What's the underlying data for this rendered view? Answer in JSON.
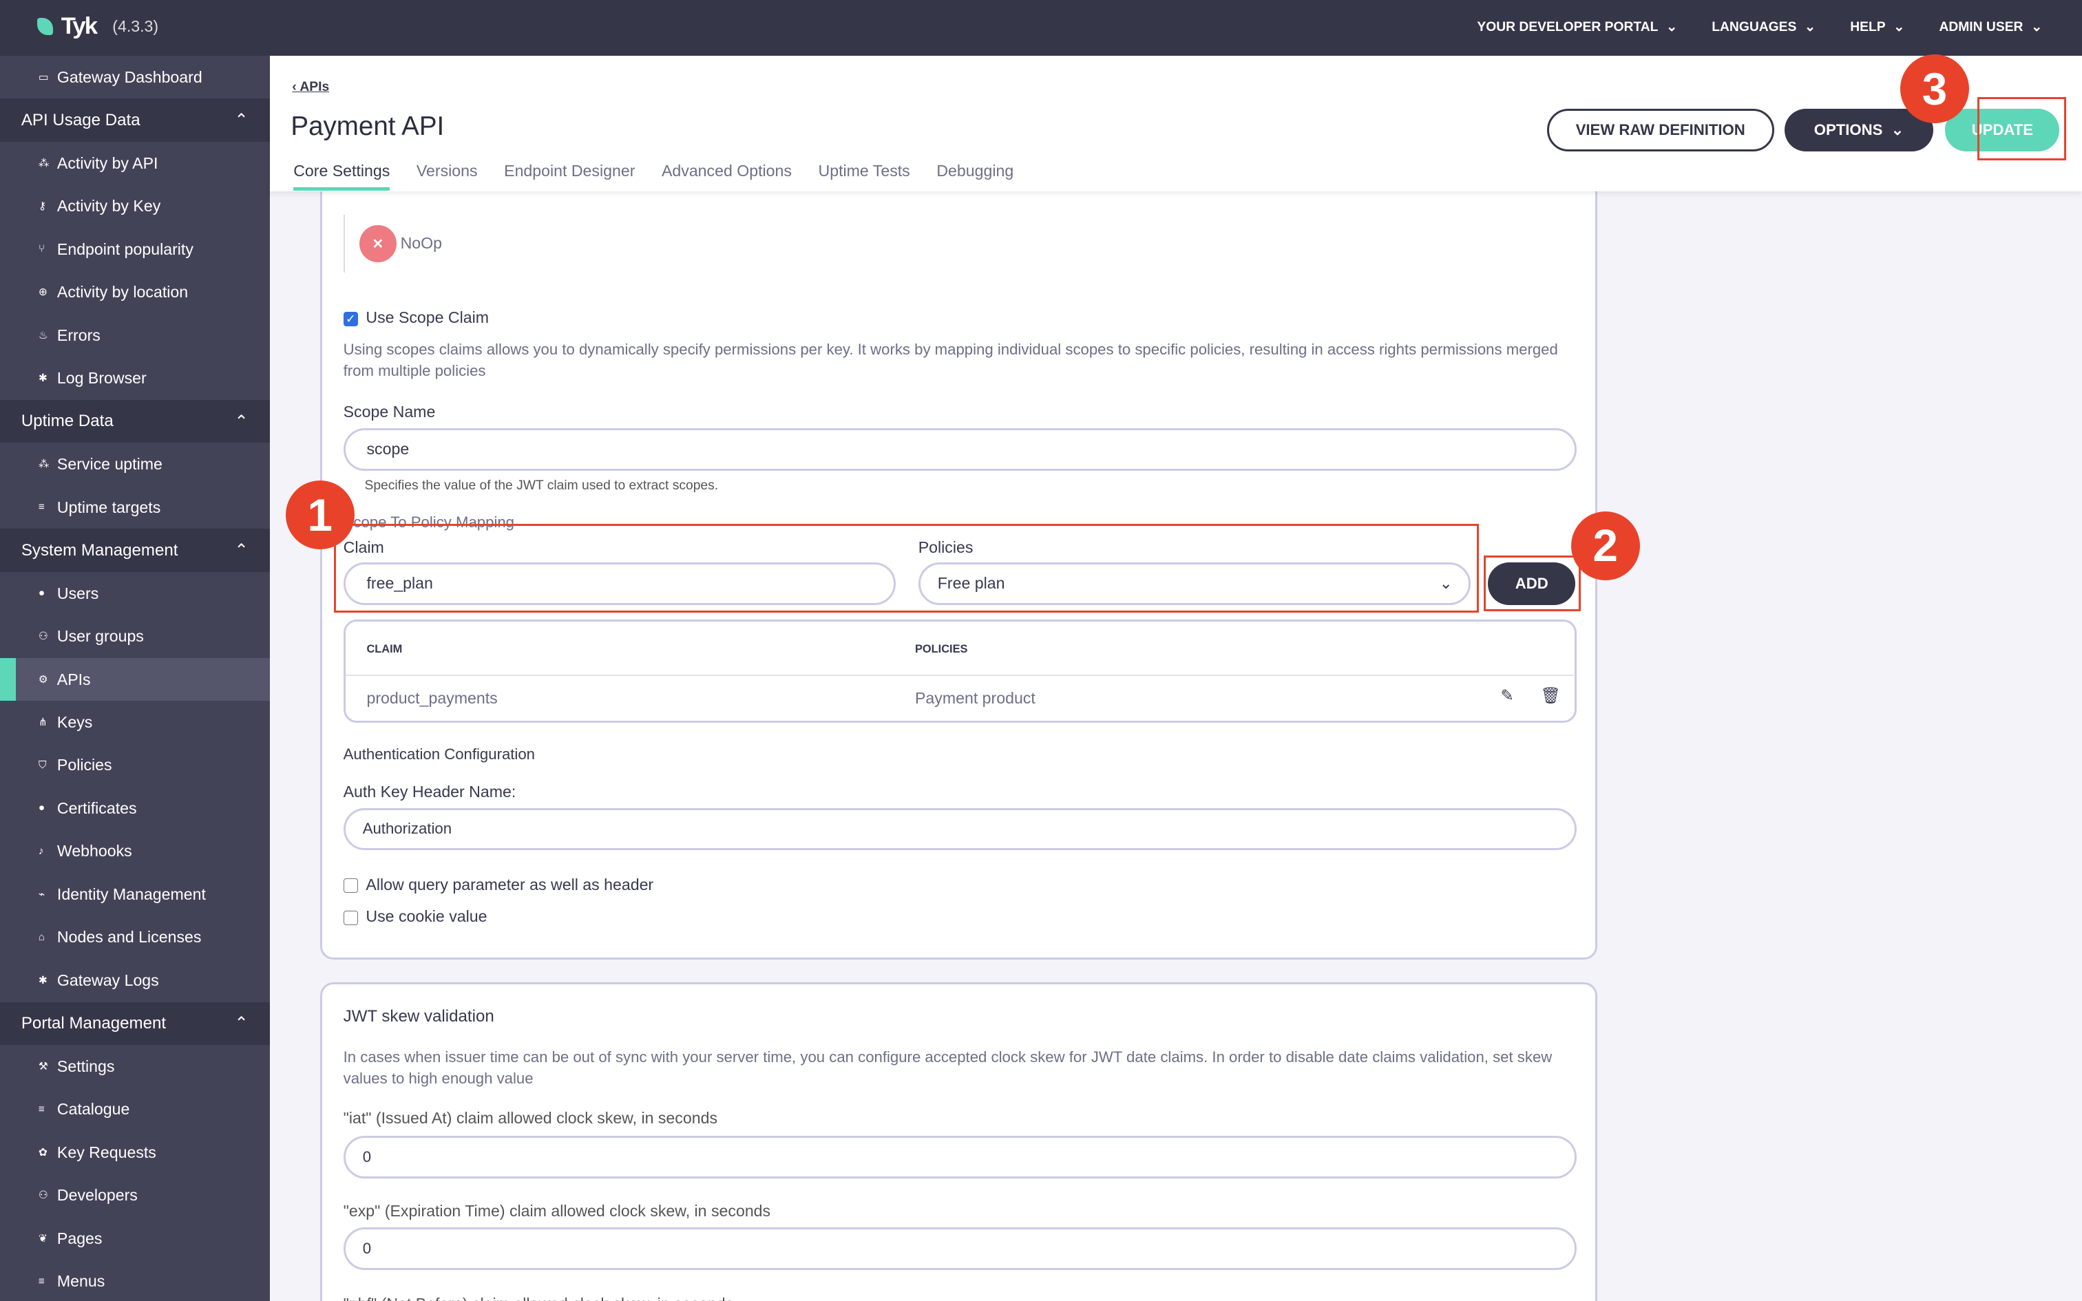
{
  "topbar": {
    "brand": "Tyk",
    "version": "(4.3.3)",
    "nav": [
      "YOUR DEVELOPER PORTAL",
      "LANGUAGES",
      "HELP",
      "ADMIN USER"
    ]
  },
  "sidebar": {
    "top": {
      "label": "Gateway Dashboard",
      "icon": "monitor-icon"
    },
    "sections": [
      {
        "title": "API Usage Data",
        "items": [
          {
            "label": "Activity by API",
            "icon": "cubes-icon"
          },
          {
            "label": "Activity by Key",
            "icon": "key-icon"
          },
          {
            "label": "Endpoint popularity",
            "icon": "branch-icon"
          },
          {
            "label": "Activity by location",
            "icon": "globe-icon"
          },
          {
            "label": "Errors",
            "icon": "fire-icon"
          },
          {
            "label": "Log Browser",
            "icon": "bug-icon"
          }
        ]
      },
      {
        "title": "Uptime Data",
        "items": [
          {
            "label": "Service uptime",
            "icon": "cubes-icon"
          },
          {
            "label": "Uptime targets",
            "icon": "list-icon"
          }
        ]
      },
      {
        "title": "System Management",
        "items": [
          {
            "label": "Users",
            "icon": "user-icon"
          },
          {
            "label": "User groups",
            "icon": "users-icon"
          },
          {
            "label": "APIs",
            "icon": "cogs-icon",
            "active": true
          },
          {
            "label": "Keys",
            "icon": "sitemap-icon"
          },
          {
            "label": "Policies",
            "icon": "shield-icon"
          },
          {
            "label": "Certificates",
            "icon": "certificate-icon"
          },
          {
            "label": "Webhooks",
            "icon": "bell-icon"
          },
          {
            "label": "Identity Management",
            "icon": "link-icon"
          },
          {
            "label": "Nodes and Licenses",
            "icon": "bank-icon"
          },
          {
            "label": "Gateway Logs",
            "icon": "bug-icon"
          }
        ]
      },
      {
        "title": "Portal Management",
        "items": [
          {
            "label": "Settings",
            "icon": "wrench-icon"
          },
          {
            "label": "Catalogue",
            "icon": "list-icon"
          },
          {
            "label": "Key Requests",
            "icon": "paw-icon"
          },
          {
            "label": "Developers",
            "icon": "users-icon"
          },
          {
            "label": "Pages",
            "icon": "leaf-icon"
          },
          {
            "label": "Menus",
            "icon": "bars-icon"
          }
        ]
      }
    ]
  },
  "header": {
    "breadcrumb": "APIs",
    "title": "Payment API",
    "tabs": [
      "Core Settings",
      "Versions",
      "Endpoint Designer",
      "Advanced Options",
      "Uptime Tests",
      "Debugging"
    ],
    "active_tab": "Core Settings",
    "view_raw": "VIEW RAW DEFINITION",
    "options": "OPTIONS",
    "update": "UPDATE"
  },
  "annotations": [
    "1",
    "2",
    "3"
  ],
  "auth": {
    "noop": "NoOp",
    "use_scope_claim": {
      "label": "Use Scope Claim",
      "checked": true
    },
    "scope_desc": "Using scopes claims allows you to dynamically specify permissions per key. It works by mapping individual scopes to specific policies, resulting in access rights permissions merged from multiple policies",
    "scope_name_label": "Scope Name",
    "scope_name_value": "scope",
    "scope_name_help": "Specifies the value of the JWT claim used to extract scopes.",
    "mapping_title": "Scope To Policy Mapping",
    "claim_label": "Claim",
    "claim_value": "free_plan",
    "policies_label": "Policies",
    "policies_value": "Free plan",
    "add": "ADD",
    "table": {
      "headers": [
        "CLAIM",
        "POLICIES"
      ],
      "rows": [
        {
          "claim": "product_payments",
          "policy": "Payment product"
        }
      ]
    },
    "auth_config_title": "Authentication Configuration",
    "auth_header_label": "Auth Key Header Name:",
    "auth_header_value": "Authorization",
    "allow_query": {
      "label": "Allow query parameter as well as header",
      "checked": false
    },
    "use_cookie": {
      "label": "Use cookie value",
      "checked": false
    }
  },
  "skew": {
    "title": "JWT skew validation",
    "desc": "In cases when issuer time can be out of sync with your server time, you can configure accepted clock skew for JWT date claims. In order to disable date claims validation, set skew values to high enough value",
    "iat_label": "\"iat\" (Issued At) claim allowed clock skew, in seconds",
    "iat_value": "0",
    "exp_label": "\"exp\" (Expiration Time) claim allowed clock skew, in seconds",
    "exp_value": "0",
    "nbf_label": "\"nbf\" (Not Before) claim allowed clock skew, in seconds"
  },
  "colors": {
    "accent": "#5ed6b8",
    "dark": "#363649",
    "annotation": "#e8432a"
  }
}
